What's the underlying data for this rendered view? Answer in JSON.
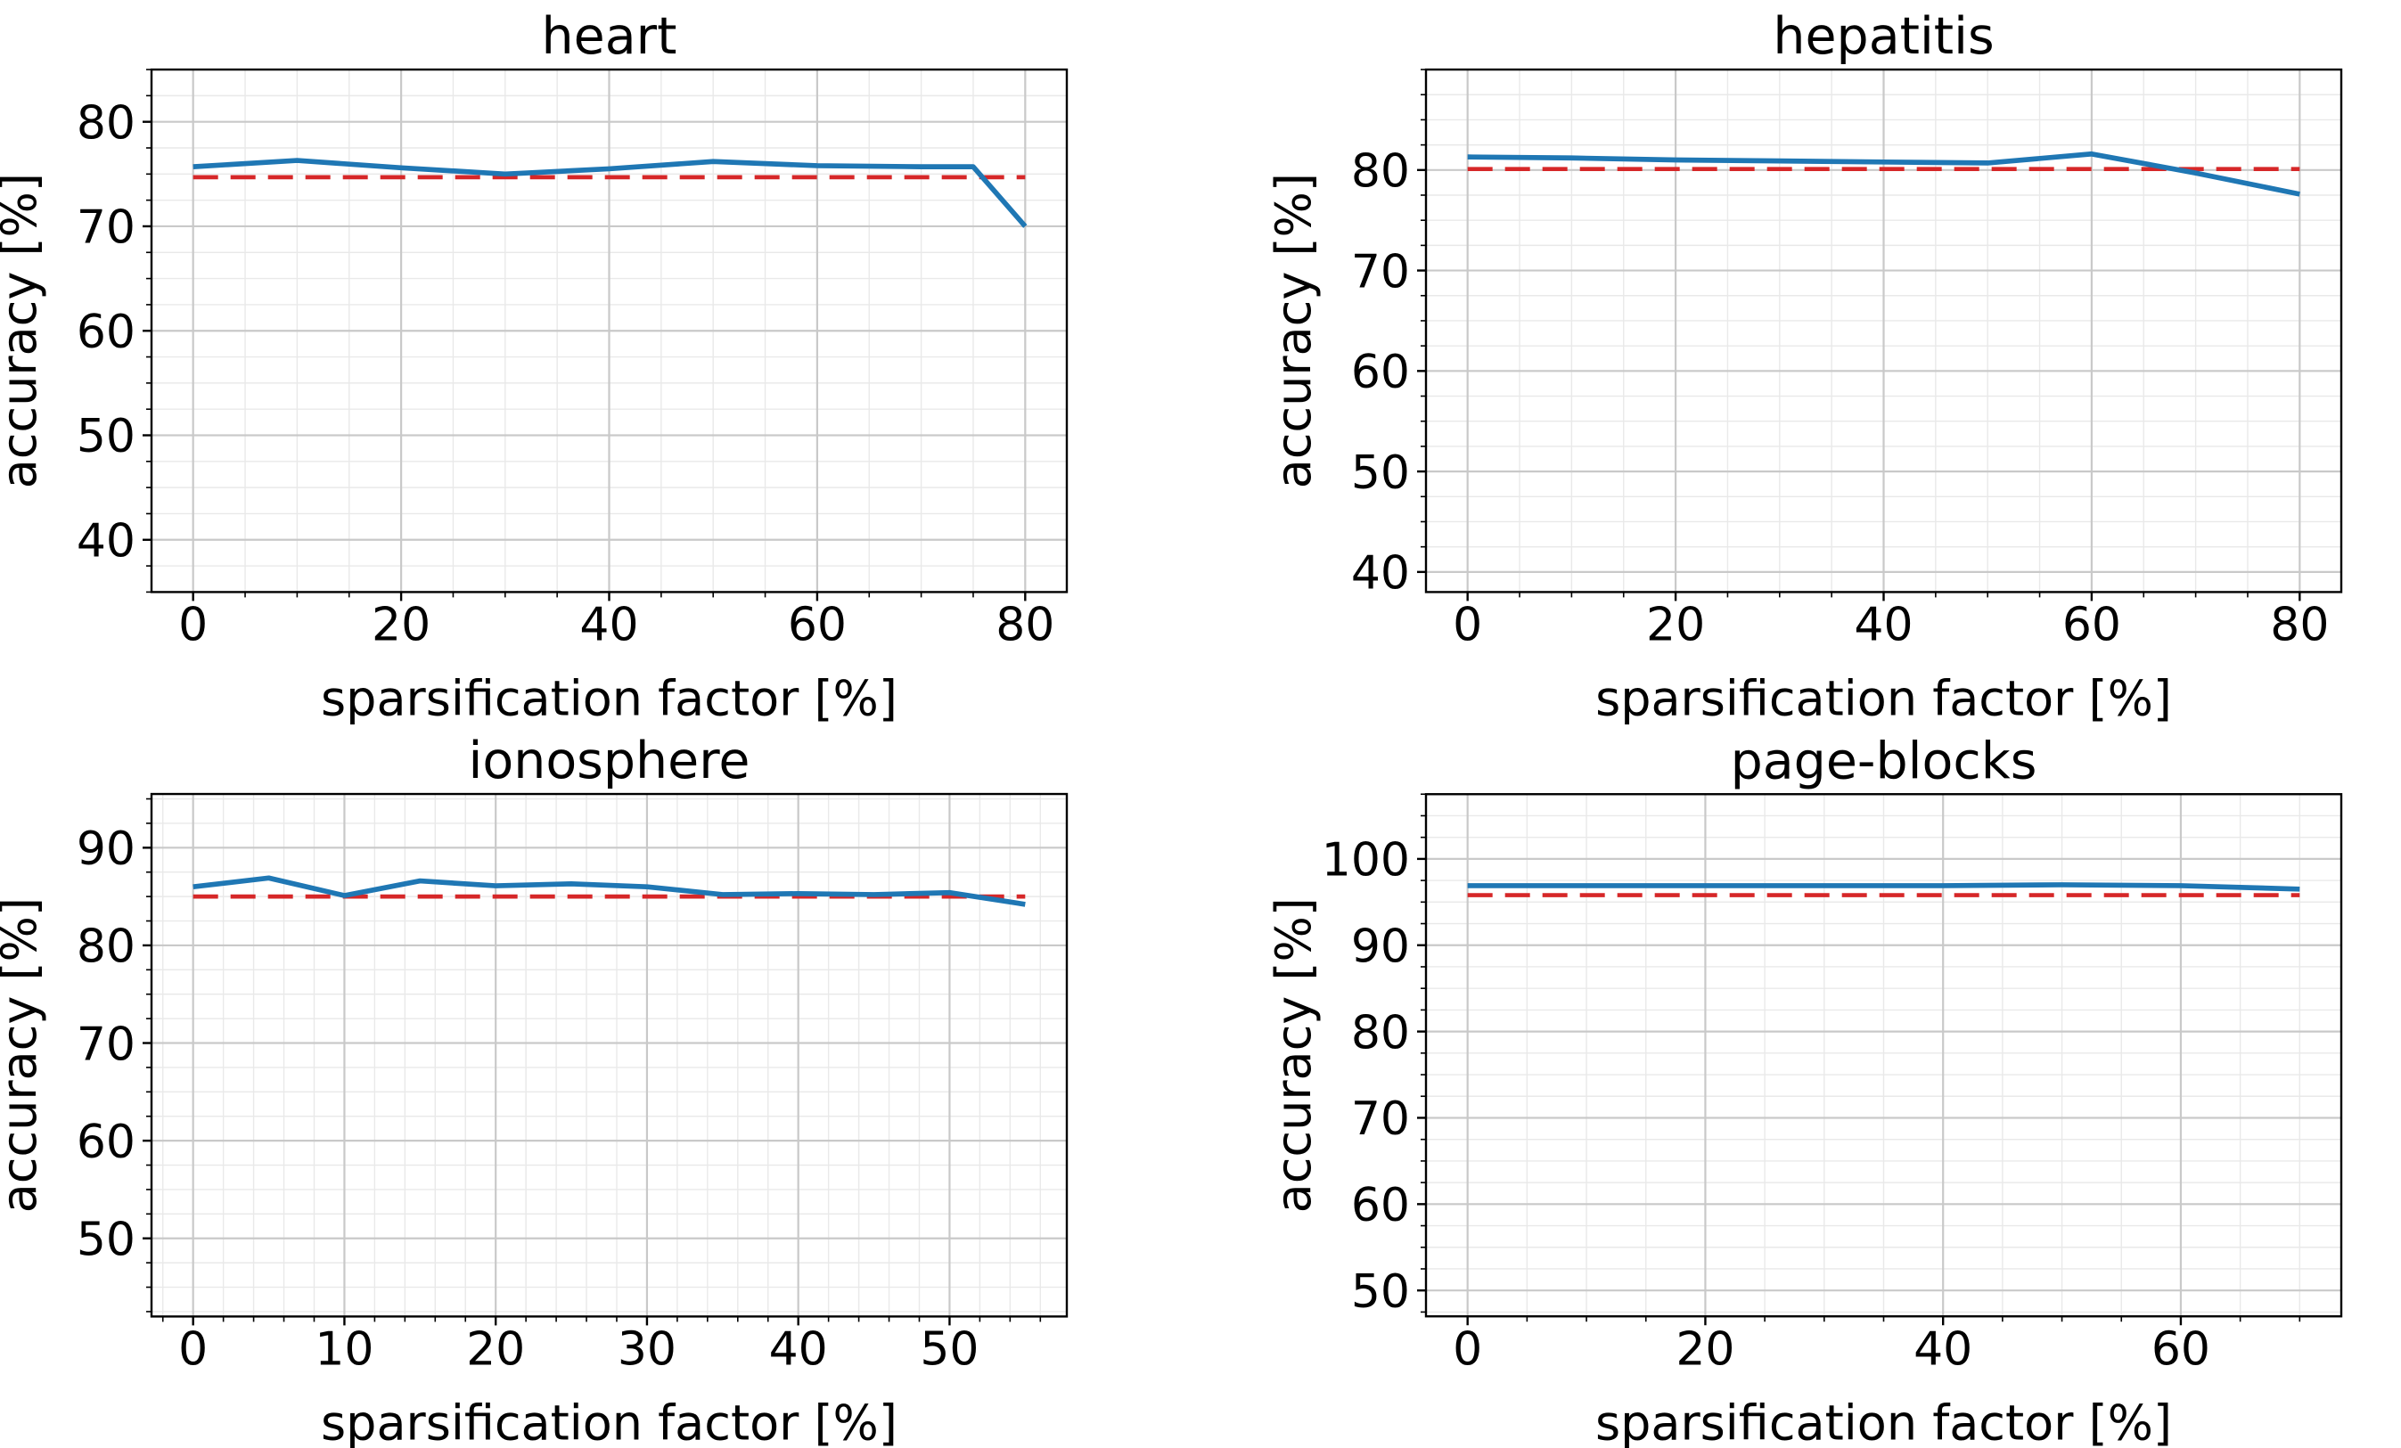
{
  "figure": {
    "colors": {
      "line": "#1f77b4",
      "baseline": "#d62728",
      "grid_major": "#c9c9c9",
      "grid_minor": "#e9e9e9",
      "spine": "#000000",
      "text": "#000000",
      "background": "#ffffff"
    }
  },
  "chart_data": [
    {
      "type": "line",
      "title": "heart",
      "xlabel": "sparsification factor [%]",
      "ylabel": "accuracy [%]",
      "x": [
        0,
        10,
        20,
        30,
        40,
        50,
        60,
        70,
        75,
        80
      ],
      "series": [
        {
          "values": [
            75.7,
            76.3,
            75.6,
            75.0,
            75.5,
            76.2,
            75.8,
            75.7,
            75.7,
            70.0
          ]
        }
      ],
      "baseline": 74.7,
      "xticks": [
        0,
        20,
        40,
        60,
        80
      ],
      "yticks": [
        40,
        50,
        60,
        70,
        80
      ],
      "xlim": [
        -4,
        84
      ],
      "ylim": [
        35,
        85
      ],
      "x_minor_step": 5,
      "y_minor_step": 2.5,
      "grid": "major+minor",
      "legend": "none"
    },
    {
      "type": "line",
      "title": "hepatitis",
      "xlabel": "sparsification factor [%]",
      "ylabel": "accuracy [%]",
      "x": [
        0,
        10,
        20,
        30,
        40,
        50,
        60,
        70,
        80
      ],
      "series": [
        {
          "values": [
            81.3,
            81.2,
            81.0,
            80.9,
            80.8,
            80.7,
            81.6,
            79.7,
            77.6
          ]
        }
      ],
      "baseline": 80.1,
      "xticks": [
        0,
        20,
        40,
        60,
        80
      ],
      "yticks": [
        40,
        50,
        60,
        70,
        80
      ],
      "xlim": [
        -4,
        84
      ],
      "ylim": [
        38,
        90
      ],
      "x_minor_step": 5,
      "y_minor_step": 2.5,
      "grid": "major+minor",
      "legend": "none"
    },
    {
      "type": "line",
      "title": "ionosphere",
      "xlabel": "sparsification factor [%]",
      "ylabel": "accuracy [%]",
      "x": [
        0,
        5,
        10,
        15,
        20,
        25,
        30,
        35,
        40,
        45,
        50,
        55
      ],
      "series": [
        {
          "values": [
            86.0,
            86.9,
            85.1,
            86.6,
            86.1,
            86.3,
            86.0,
            85.2,
            85.3,
            85.2,
            85.4,
            84.2
          ]
        }
      ],
      "baseline": 85.0,
      "xticks": [
        0,
        10,
        20,
        30,
        40,
        50
      ],
      "yticks": [
        50,
        60,
        70,
        80,
        90
      ],
      "xlim": [
        -2.75,
        57.75
      ],
      "ylim": [
        42,
        95.5
      ],
      "x_minor_step": 2,
      "y_minor_step": 2.5,
      "grid": "major+minor",
      "legend": "none"
    },
    {
      "type": "line",
      "title": "page-blocks",
      "xlabel": "sparsification factor [%]",
      "ylabel": "accuracy [%]",
      "x": [
        0,
        10,
        20,
        30,
        40,
        50,
        60,
        70
      ],
      "series": [
        {
          "values": [
            96.9,
            96.9,
            96.9,
            96.9,
            96.9,
            97.0,
            96.9,
            96.5
          ]
        }
      ],
      "baseline": 95.8,
      "xticks": [
        0,
        20,
        40,
        60
      ],
      "yticks": [
        50,
        60,
        70,
        80,
        90,
        100
      ],
      "xlim": [
        -3.5,
        73.5
      ],
      "ylim": [
        47,
        107.5
      ],
      "x_minor_step": 5,
      "y_minor_step": 2.5,
      "grid": "major+minor",
      "legend": "none"
    }
  ]
}
